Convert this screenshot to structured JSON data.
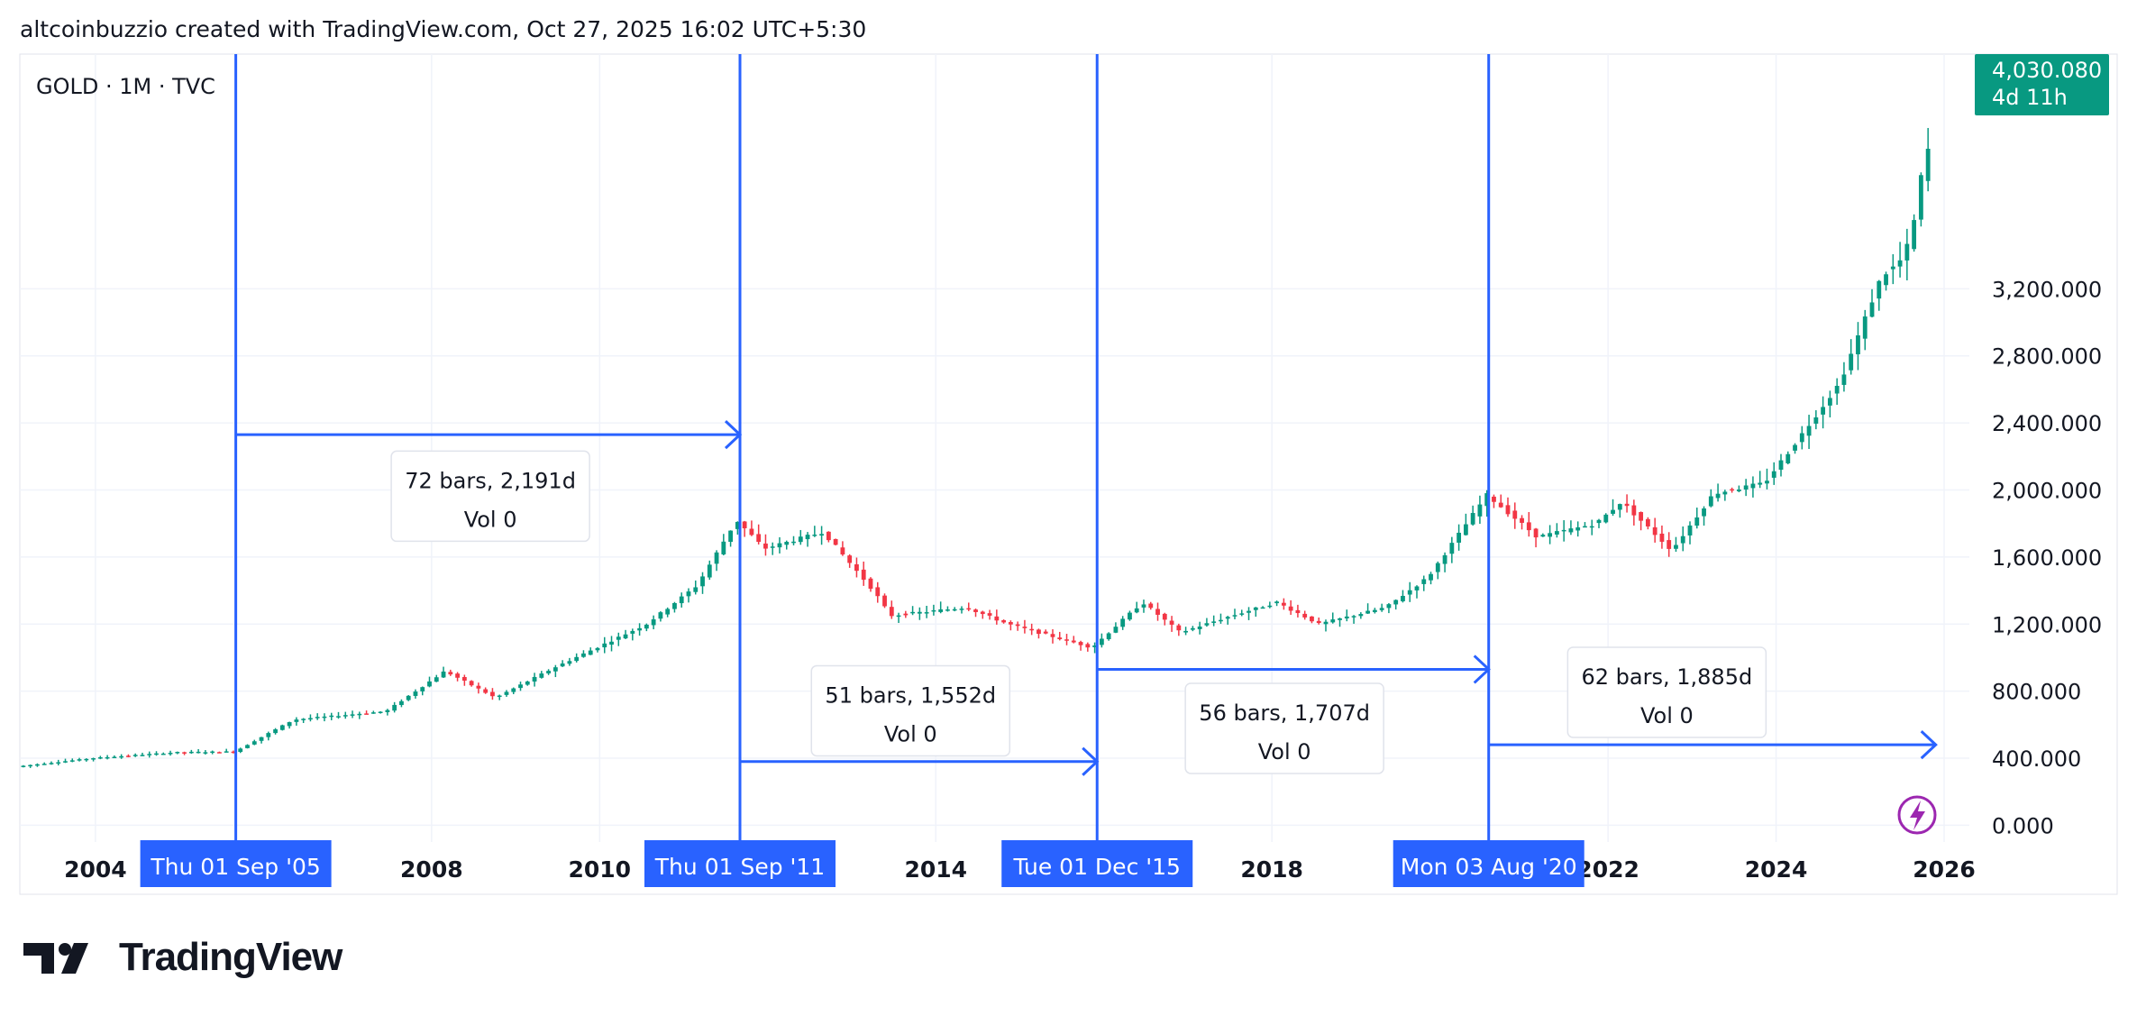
{
  "header": {
    "text": "altcoinbuzzio created with TradingView.com, Oct 27, 2025 16:02 UTC+5:30"
  },
  "brand": {
    "name": "TradingView"
  },
  "symbol": {
    "label": "GOLD · 1M · TVC"
  },
  "colors": {
    "up": "#089981",
    "down": "#f23645",
    "tool": "#2962ff",
    "grid": "#f0f3fa",
    "text": "#131722",
    "badge": "#089981",
    "flash": "#9c27b0"
  },
  "price_badge": {
    "price": "4,030.080",
    "countdown": "4d 11h"
  },
  "flash_icon": "lightning-icon",
  "chart_data": {
    "type": "candlestick",
    "x_range": [
      2003.1,
      2026.3
    ],
    "y_range": [
      -100,
      4600
    ],
    "x_ticks": [
      {
        "label": "2004",
        "value": 2004
      },
      {
        "label": "2008",
        "value": 2008
      },
      {
        "label": "2010",
        "value": 2010
      },
      {
        "label": "2014",
        "value": 2014
      },
      {
        "label": "2018",
        "value": 2018
      },
      {
        "label": "2022",
        "value": 2022
      },
      {
        "label": "2024",
        "value": 2024
      },
      {
        "label": "2026",
        "value": 2026
      }
    ],
    "y_ticks": [
      {
        "label": "0.000",
        "value": 0
      },
      {
        "label": "400.000",
        "value": 400
      },
      {
        "label": "800.000",
        "value": 800
      },
      {
        "label": "1,200.000",
        "value": 1200
      },
      {
        "label": "1,600.000",
        "value": 1600
      },
      {
        "label": "2,000.000",
        "value": 2000
      },
      {
        "label": "2,400.000",
        "value": 2400
      },
      {
        "label": "2,800.000",
        "value": 2800
      },
      {
        "label": "3,200.000",
        "value": 3200
      }
    ],
    "price_anchors": [
      [
        2003.1,
        350
      ],
      [
        2004.0,
        400
      ],
      [
        2005.0,
        435
      ],
      [
        2005.7,
        440
      ],
      [
        2006.4,
        630
      ],
      [
        2007.5,
        680
      ],
      [
        2008.2,
        920
      ],
      [
        2008.8,
        760
      ],
      [
        2009.5,
        940
      ],
      [
        2010.6,
        1200
      ],
      [
        2011.2,
        1430
      ],
      [
        2011.67,
        1820
      ],
      [
        2012.0,
        1650
      ],
      [
        2012.7,
        1750
      ],
      [
        2013.3,
        1400
      ],
      [
        2013.5,
        1250
      ],
      [
        2014.4,
        1300
      ],
      [
        2014.9,
        1200
      ],
      [
        2015.9,
        1060
      ],
      [
        2016.5,
        1330
      ],
      [
        2016.95,
        1150
      ],
      [
        2017.5,
        1240
      ],
      [
        2018.1,
        1330
      ],
      [
        2018.6,
        1200
      ],
      [
        2019.4,
        1300
      ],
      [
        2019.9,
        1480
      ],
      [
        2020.6,
        1970
      ],
      [
        2021.2,
        1720
      ],
      [
        2021.9,
        1800
      ],
      [
        2022.2,
        1930
      ],
      [
        2022.8,
        1640
      ],
      [
        2023.3,
        1980
      ],
      [
        2023.9,
        2040
      ],
      [
        2024.3,
        2300
      ],
      [
        2024.8,
        2640
      ],
      [
        2025.3,
        3280
      ],
      [
        2025.5,
        3350
      ],
      [
        2025.65,
        3500
      ],
      [
        2025.82,
        4030
      ]
    ],
    "markers": [
      {
        "label": "Thu 01 Sep '05",
        "value": 2005.67
      },
      {
        "label": "Thu 01 Sep '11",
        "value": 2011.67
      },
      {
        "label": "Tue 01 Dec '15",
        "value": 2015.92
      },
      {
        "label": "Mon 03 Aug '20",
        "value": 2020.58
      }
    ],
    "ranges": [
      {
        "from": 2005.67,
        "to": 2011.67,
        "price": 2330,
        "bars": "72 bars, 2,191d",
        "vol": "Vol 0",
        "label_x": 2008.7,
        "label_price": 1995
      },
      {
        "from": 2011.67,
        "to": 2015.92,
        "price": 380,
        "bars": "51 bars, 1,552d",
        "vol": "Vol 0",
        "label_x": 2013.7,
        "label_price": 715
      },
      {
        "from": 2015.92,
        "to": 2020.58,
        "price": 930,
        "bars": "56 bars, 1,707d",
        "vol": "Vol 0",
        "label_x": 2018.15,
        "label_price": 610
      },
      {
        "from": 2020.58,
        "to": 2025.9,
        "price": 480,
        "bars": "62 bars, 1,885d",
        "vol": "Vol 0",
        "label_x": 2022.7,
        "label_price": 825
      }
    ],
    "last_price": 4030.08
  }
}
